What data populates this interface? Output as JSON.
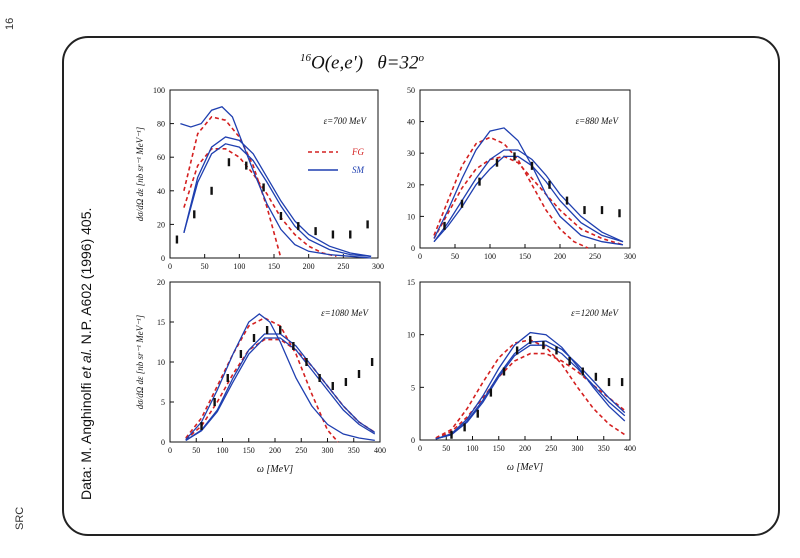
{
  "page": {
    "page_number": "16",
    "source_tag": "SRC"
  },
  "citation": {
    "prefix": "Data: M. Anghinolfi ",
    "etal": "et al.",
    "suffix": " N.P. A602 (1996) 405."
  },
  "title": {
    "nucleus_mass": "16",
    "reaction": "O(e,e')",
    "angle": "θ=32",
    "angle_sup": "o"
  },
  "colors": {
    "fg": "#d42020",
    "sm": "#1f3fb0",
    "data": "#111111"
  },
  "chart_data": [
    {
      "type": "line",
      "label": "ε=700 MeV",
      "xlim": [
        0,
        300
      ],
      "ylim": [
        0,
        100
      ],
      "xticks": [
        0,
        50,
        100,
        150,
        200,
        250,
        300
      ],
      "yticks": [
        0,
        20,
        40,
        60,
        80,
        100
      ],
      "xlabel": "",
      "ylabel": "dσ/dΩ dε [nb sr⁻¹ MeV⁻¹]",
      "legend": [
        {
          "name": "FG",
          "style": "dashed"
        },
        {
          "name": "SM",
          "style": "solid"
        }
      ],
      "data_points": [
        {
          "x": 10,
          "y": 11
        },
        {
          "x": 35,
          "y": 26
        },
        {
          "x": 60,
          "y": 40
        },
        {
          "x": 85,
          "y": 57
        },
        {
          "x": 110,
          "y": 55
        },
        {
          "x": 135,
          "y": 42
        },
        {
          "x": 160,
          "y": 25
        },
        {
          "x": 185,
          "y": 19
        },
        {
          "x": 210,
          "y": 16
        },
        {
          "x": 235,
          "y": 14
        },
        {
          "x": 260,
          "y": 14
        },
        {
          "x": 285,
          "y": 20
        }
      ],
      "series": [
        {
          "name": "FG",
          "style": "dashed",
          "x": [
            20,
            40,
            60,
            80,
            100,
            120,
            140,
            160
          ],
          "y": [
            40,
            74,
            84,
            82,
            72,
            55,
            30,
            0
          ]
        },
        {
          "name": "FG",
          "style": "dashed",
          "x": [
            20,
            40,
            60,
            80,
            100,
            120,
            140,
            160,
            180,
            200,
            220,
            240
          ],
          "y": [
            30,
            55,
            65,
            65,
            60,
            50,
            38,
            24,
            14,
            7,
            3,
            1
          ]
        },
        {
          "name": "SM",
          "style": "solid",
          "x": [
            15,
            30,
            45,
            60,
            75,
            90,
            105,
            120,
            140,
            160,
            180,
            200,
            230,
            260,
            290
          ],
          "y": [
            80,
            78,
            80,
            88,
            90,
            84,
            68,
            52,
            32,
            17,
            8,
            4,
            2,
            1,
            0
          ]
        },
        {
          "name": "SM",
          "style": "solid",
          "x": [
            20,
            40,
            60,
            80,
            100,
            120,
            140,
            160,
            180,
            200,
            230,
            260,
            290
          ],
          "y": [
            15,
            48,
            66,
            72,
            70,
            62,
            48,
            34,
            22,
            14,
            7,
            3,
            1
          ]
        },
        {
          "name": "SM",
          "style": "solid",
          "x": [
            20,
            40,
            60,
            80,
            100,
            120,
            140,
            160,
            180,
            200,
            230,
            260,
            290
          ],
          "y": [
            15,
            45,
            62,
            68,
            66,
            58,
            45,
            31,
            19,
            11,
            5,
            2,
            1
          ]
        }
      ]
    },
    {
      "type": "line",
      "label": "ε=880 MeV",
      "xlim": [
        0,
        300
      ],
      "ylim": [
        0,
        50
      ],
      "xticks": [
        0,
        50,
        100,
        150,
        200,
        250,
        300
      ],
      "yticks": [
        0,
        10,
        20,
        30,
        40,
        50
      ],
      "xlabel": "",
      "ylabel": "",
      "data_points": [
        {
          "x": 35,
          "y": 7
        },
        {
          "x": 60,
          "y": 14
        },
        {
          "x": 85,
          "y": 21
        },
        {
          "x": 110,
          "y": 27
        },
        {
          "x": 135,
          "y": 29
        },
        {
          "x": 160,
          "y": 26
        },
        {
          "x": 185,
          "y": 20
        },
        {
          "x": 210,
          "y": 15
        },
        {
          "x": 235,
          "y": 12
        },
        {
          "x": 260,
          "y": 12
        },
        {
          "x": 285,
          "y": 11
        }
      ],
      "series": [
        {
          "name": "FG",
          "style": "dashed",
          "x": [
            20,
            40,
            60,
            80,
            100,
            120,
            140,
            160,
            180,
            200,
            220,
            240
          ],
          "y": [
            4,
            15,
            26,
            33,
            35,
            33,
            28,
            20,
            12,
            6,
            2,
            0
          ]
        },
        {
          "name": "FG",
          "style": "dashed",
          "x": [
            20,
            40,
            60,
            80,
            100,
            120,
            140,
            160,
            180,
            200,
            230,
            260,
            290
          ],
          "y": [
            3,
            11,
            19,
            25,
            28,
            29,
            27,
            22,
            17,
            12,
            6,
            3,
            1
          ]
        },
        {
          "name": "SM",
          "style": "solid",
          "x": [
            20,
            40,
            60,
            80,
            100,
            120,
            140,
            160,
            180,
            200,
            230,
            260,
            290
          ],
          "y": [
            3,
            12,
            22,
            31,
            37,
            38,
            34,
            26,
            17,
            10,
            4,
            2,
            1
          ]
        },
        {
          "name": "SM",
          "style": "solid",
          "x": [
            20,
            40,
            60,
            80,
            100,
            120,
            140,
            160,
            180,
            200,
            230,
            260,
            290
          ],
          "y": [
            2,
            8,
            15,
            22,
            28,
            31,
            31,
            28,
            23,
            17,
            10,
            5,
            2
          ]
        },
        {
          "name": "SM",
          "style": "solid",
          "x": [
            20,
            40,
            60,
            80,
            100,
            120,
            140,
            160,
            180,
            200,
            230,
            260,
            290
          ],
          "y": [
            2,
            7,
            13,
            20,
            25,
            29,
            29,
            26,
            21,
            15,
            8,
            4,
            2
          ]
        }
      ]
    },
    {
      "type": "line",
      "label": "ε=1080 MeV",
      "xlim": [
        0,
        400
      ],
      "ylim": [
        0,
        20
      ],
      "xticks": [
        0,
        50,
        100,
        150,
        200,
        250,
        300,
        350,
        400
      ],
      "yticks": [
        0,
        5,
        10,
        15,
        20
      ],
      "xlabel": "ω [MeV]",
      "ylabel": "dσ/dΩ dε [nb sr⁻¹ MeV⁻¹]",
      "data_points": [
        {
          "x": 60,
          "y": 2
        },
        {
          "x": 85,
          "y": 5
        },
        {
          "x": 110,
          "y": 8
        },
        {
          "x": 135,
          "y": 11
        },
        {
          "x": 160,
          "y": 13
        },
        {
          "x": 185,
          "y": 14
        },
        {
          "x": 210,
          "y": 14
        },
        {
          "x": 235,
          "y": 12
        },
        {
          "x": 260,
          "y": 10
        },
        {
          "x": 285,
          "y": 8
        },
        {
          "x": 310,
          "y": 7
        },
        {
          "x": 335,
          "y": 7.5
        },
        {
          "x": 360,
          "y": 8.5
        },
        {
          "x": 385,
          "y": 10
        }
      ],
      "series": [
        {
          "name": "FG",
          "style": "dashed",
          "x": [
            30,
            60,
            90,
            120,
            150,
            180,
            210,
            240,
            270,
            300,
            320
          ],
          "y": [
            0.5,
            3,
            7,
            11,
            14.5,
            15.5,
            14.5,
            11,
            6,
            1.5,
            0
          ]
        },
        {
          "name": "FG",
          "style": "dashed",
          "x": [
            30,
            60,
            90,
            120,
            150,
            180,
            210,
            240,
            270,
            300,
            330,
            360,
            390
          ],
          "y": [
            0.3,
            2,
            5,
            8.5,
            11.5,
            12.8,
            12.8,
            11.5,
            9.5,
            7,
            4.5,
            2.5,
            1.2
          ]
        },
        {
          "name": "SM",
          "style": "solid",
          "x": [
            30,
            60,
            90,
            120,
            150,
            170,
            190,
            210,
            240,
            270,
            300,
            330,
            360,
            390
          ],
          "y": [
            0.3,
            2.5,
            6.5,
            11,
            15,
            16,
            15,
            12.5,
            8,
            4.5,
            2.2,
            1,
            0.5,
            0.2
          ]
        },
        {
          "name": "SM",
          "style": "solid",
          "x": [
            30,
            60,
            90,
            120,
            150,
            180,
            210,
            240,
            270,
            300,
            330,
            360,
            390
          ],
          "y": [
            0.2,
            1.5,
            4,
            8,
            11.5,
            13.5,
            13.5,
            12,
            9.5,
            7,
            4.5,
            2.5,
            1.2
          ]
        },
        {
          "name": "SM",
          "style": "solid",
          "x": [
            30,
            60,
            90,
            120,
            150,
            180,
            210,
            240,
            270,
            300,
            330,
            360,
            390
          ],
          "y": [
            0.2,
            1.4,
            3.8,
            7.5,
            11,
            13,
            13,
            11.5,
            9,
            6.5,
            4,
            2.2,
            1
          ]
        }
      ]
    },
    {
      "type": "line",
      "label": "ε=1200 MeV",
      "xlim": [
        0,
        400
      ],
      "ylim": [
        0,
        15
      ],
      "xticks": [
        0,
        50,
        100,
        150,
        200,
        250,
        300,
        350,
        400
      ],
      "yticks": [
        0,
        5,
        10,
        15
      ],
      "xlabel": "ω [MeV]",
      "ylabel": "",
      "data_points": [
        {
          "x": 60,
          "y": 0.5
        },
        {
          "x": 85,
          "y": 1.2
        },
        {
          "x": 110,
          "y": 2.5
        },
        {
          "x": 135,
          "y": 4.5
        },
        {
          "x": 160,
          "y": 6.5
        },
        {
          "x": 185,
          "y": 8.5
        },
        {
          "x": 210,
          "y": 9.5
        },
        {
          "x": 235,
          "y": 9
        },
        {
          "x": 260,
          "y": 8.5
        },
        {
          "x": 285,
          "y": 7.5
        },
        {
          "x": 310,
          "y": 6.5
        },
        {
          "x": 335,
          "y": 6
        },
        {
          "x": 360,
          "y": 5.5
        },
        {
          "x": 385,
          "y": 5.5
        }
      ],
      "series": [
        {
          "name": "FG",
          "style": "dashed",
          "x": [
            30,
            60,
            90,
            120,
            150,
            180,
            210,
            240,
            270,
            300,
            330,
            360,
            390
          ],
          "y": [
            0.2,
            1,
            3,
            5.5,
            7.8,
            9.2,
            9.5,
            8.8,
            7.2,
            5,
            3,
            1.5,
            0.5
          ]
        },
        {
          "name": "FG",
          "style": "dashed",
          "x": [
            30,
            60,
            90,
            120,
            150,
            180,
            210,
            240,
            270,
            300,
            330,
            360,
            390
          ],
          "y": [
            0.1,
            0.8,
            2.2,
            4,
            6,
            7.5,
            8.2,
            8.2,
            7.5,
            6.5,
            5.2,
            4,
            2.8
          ]
        },
        {
          "name": "SM",
          "style": "solid",
          "x": [
            30,
            60,
            90,
            120,
            150,
            180,
            210,
            240,
            270,
            300,
            330,
            360,
            390
          ],
          "y": [
            0.1,
            0.6,
            2,
            4.2,
            6.8,
            9,
            10.2,
            10,
            8.8,
            7,
            5,
            3.2,
            1.8
          ]
        },
        {
          "name": "SM",
          "style": "solid",
          "x": [
            30,
            60,
            90,
            120,
            150,
            180,
            210,
            240,
            270,
            300,
            330,
            360,
            390
          ],
          "y": [
            0.1,
            0.5,
            1.8,
            3.8,
            6.2,
            8.2,
            9.3,
            9.4,
            8.6,
            7.2,
            5.6,
            4,
            2.6
          ]
        },
        {
          "name": "SM",
          "style": "solid",
          "x": [
            30,
            60,
            90,
            120,
            150,
            180,
            210,
            240,
            270,
            300,
            330,
            360,
            390
          ],
          "y": [
            0.1,
            0.5,
            1.7,
            3.6,
            6,
            8,
            9,
            9,
            8.2,
            6.8,
            5.2,
            3.6,
            2.3
          ]
        }
      ]
    }
  ]
}
